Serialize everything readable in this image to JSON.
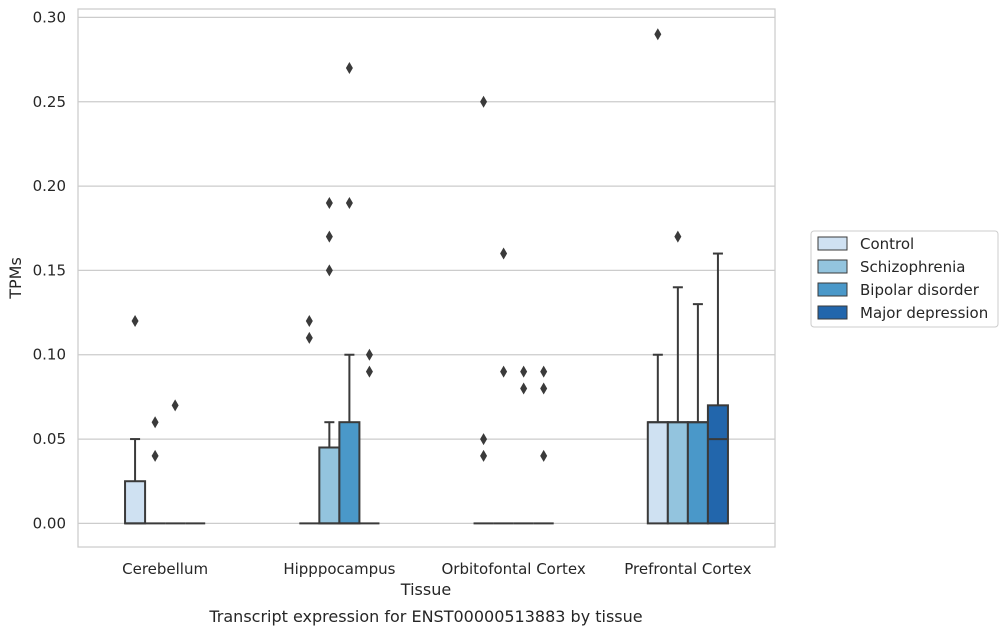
{
  "chart_data": {
    "type": "box",
    "xlabel": "Tissue",
    "ylabel": "TPMs",
    "caption": "Transcript expression for ENST00000513883 by tissue",
    "ylim": [
      -0.014,
      0.305
    ],
    "yticks": [
      0.0,
      0.05,
      0.1,
      0.15,
      0.2,
      0.25,
      0.3
    ],
    "ytick_labels": [
      "0.00",
      "0.05",
      "0.10",
      "0.15",
      "0.20",
      "0.25",
      "0.30"
    ],
    "grid": "horizontal",
    "legend_position": "right",
    "categories": [
      "Cerebellum",
      "Hipppocampus",
      "Orbitofontal Cortex",
      "Prefrontal Cortex"
    ],
    "series": [
      {
        "name": "Control",
        "color": "#cfe1f2",
        "boxes": [
          {
            "q1": 0.0,
            "median": 0.0,
            "q3": 0.025,
            "whislo": 0.0,
            "whishi": 0.05,
            "fliers": [
              0.12
            ]
          },
          {
            "q1": 0.0,
            "median": 0.0,
            "q3": 0.0,
            "whislo": 0.0,
            "whishi": 0.0,
            "fliers": [
              0.11,
              0.12
            ]
          },
          {
            "q1": 0.0,
            "median": 0.0,
            "q3": 0.0,
            "whislo": 0.0,
            "whishi": 0.0,
            "fliers": [
              0.04,
              0.05,
              0.25
            ]
          },
          {
            "q1": 0.0,
            "median": 0.06,
            "q3": 0.06,
            "whislo": 0.0,
            "whishi": 0.1,
            "fliers": [
              0.29
            ]
          }
        ]
      },
      {
        "name": "Schizophrenia",
        "color": "#93c4de",
        "boxes": [
          {
            "q1": 0.0,
            "median": 0.0,
            "q3": 0.0,
            "whislo": 0.0,
            "whishi": 0.0,
            "fliers": [
              0.04,
              0.06
            ]
          },
          {
            "q1": 0.0,
            "median": 0.0,
            "q3": 0.045,
            "whislo": 0.0,
            "whishi": 0.06,
            "fliers": [
              0.15,
              0.17,
              0.19
            ]
          },
          {
            "q1": 0.0,
            "median": 0.0,
            "q3": 0.0,
            "whislo": 0.0,
            "whishi": 0.0,
            "fliers": [
              0.09,
              0.16
            ]
          },
          {
            "q1": 0.0,
            "median": 0.06,
            "q3": 0.06,
            "whislo": 0.0,
            "whishi": 0.14,
            "fliers": [
              0.17
            ]
          }
        ]
      },
      {
        "name": "Bipolar disorder",
        "color": "#4a98c9",
        "boxes": [
          {
            "q1": 0.0,
            "median": 0.0,
            "q3": 0.0,
            "whislo": 0.0,
            "whishi": 0.0,
            "fliers": [
              0.07
            ]
          },
          {
            "q1": 0.0,
            "median": 0.0,
            "q3": 0.06,
            "whislo": 0.0,
            "whishi": 0.1,
            "fliers": [
              0.19,
              0.27
            ]
          },
          {
            "q1": 0.0,
            "median": 0.0,
            "q3": 0.0,
            "whislo": 0.0,
            "whishi": 0.0,
            "fliers": [
              0.08,
              0.09
            ]
          },
          {
            "q1": 0.0,
            "median": 0.06,
            "q3": 0.06,
            "whislo": 0.0,
            "whishi": 0.13,
            "fliers": []
          }
        ]
      },
      {
        "name": "Major depression",
        "color": "#2266ac",
        "boxes": [
          {
            "q1": 0.0,
            "median": 0.0,
            "q3": 0.0,
            "whislo": 0.0,
            "whishi": 0.0,
            "fliers": []
          },
          {
            "q1": 0.0,
            "median": 0.0,
            "q3": 0.0,
            "whislo": 0.0,
            "whishi": 0.0,
            "fliers": [
              0.09,
              0.1
            ]
          },
          {
            "q1": 0.0,
            "median": 0.0,
            "q3": 0.0,
            "whislo": 0.0,
            "whishi": 0.0,
            "fliers": [
              0.04,
              0.08,
              0.09
            ]
          },
          {
            "q1": 0.0,
            "median": 0.05,
            "q3": 0.07,
            "whislo": 0.0,
            "whishi": 0.16,
            "fliers": []
          }
        ]
      }
    ]
  }
}
